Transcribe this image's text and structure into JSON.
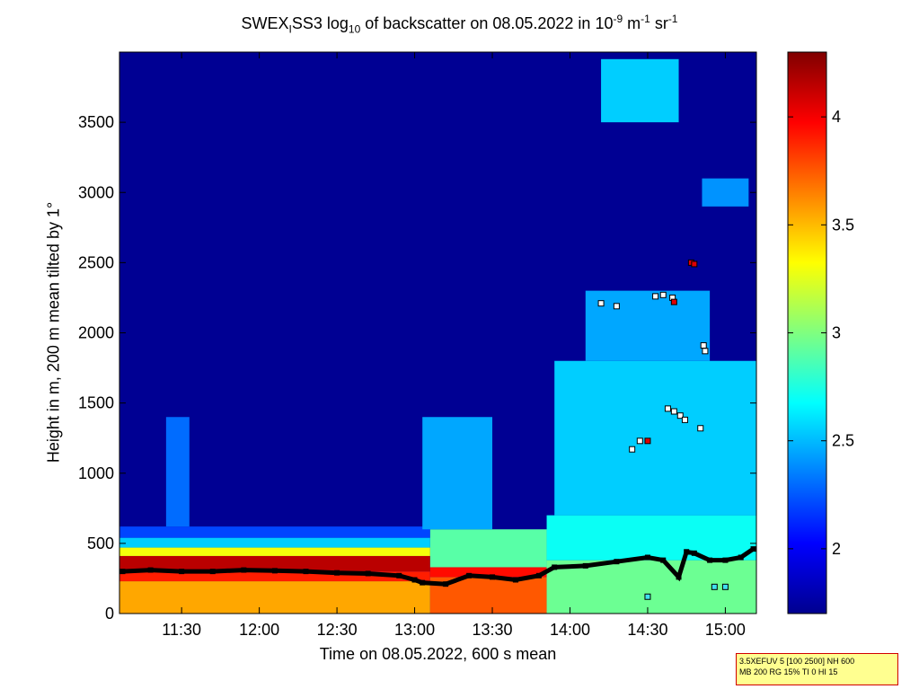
{
  "chart_data": {
    "type": "heatmap",
    "title": {
      "part1": "SWEX",
      "sub1": "I",
      "part2": "SS3 log",
      "sub2": "10",
      "part3": " of backscatter on 08.05.2022 in 10",
      "sup1": "-9",
      "part4": " m",
      "sup2": "-1",
      "part5": " sr",
      "sup3": "-1"
    },
    "xlabel": "Time on 08.05.2022, 600 s mean",
    "ylabel": "Height in m, 200 m mean tilted by 1°",
    "x_range_hours": [
      11.1,
      15.2
    ],
    "x_ticks": [
      {
        "value": 11.5,
        "label": "11:30"
      },
      {
        "value": 12.0,
        "label": "12:00"
      },
      {
        "value": 12.5,
        "label": "12:30"
      },
      {
        "value": 13.0,
        "label": "13:00"
      },
      {
        "value": 13.5,
        "label": "13:30"
      },
      {
        "value": 14.0,
        "label": "14:00"
      },
      {
        "value": 14.5,
        "label": "14:30"
      },
      {
        "value": 15.0,
        "label": "15:00"
      }
    ],
    "y_range": [
      0,
      4000
    ],
    "y_ticks": [
      0,
      500,
      1000,
      1500,
      2000,
      2500,
      3000,
      3500
    ],
    "colorbar": {
      "range": [
        1.7,
        4.3
      ],
      "ticks": [
        2,
        2.5,
        3,
        3.5,
        4
      ],
      "colormap": "jet"
    },
    "colors": {
      "background_min": "#000090",
      "max": "#800000",
      "layer_marker": "#000000",
      "cloud_marker_light": "#ffffff",
      "cloud_marker_cyan": "#40e0f0",
      "cloud_marker_red": "#e00000"
    },
    "features": [
      {
        "t0": 11.1,
        "t1": 13.1,
        "h0": 0,
        "h1": 230,
        "value": 3.55
      },
      {
        "t0": 11.1,
        "t1": 13.1,
        "h0": 230,
        "h1": 300,
        "value": 3.9
      },
      {
        "t0": 11.1,
        "t1": 13.1,
        "h0": 300,
        "h1": 410,
        "value": 4.15
      },
      {
        "t0": 11.1,
        "t1": 13.1,
        "h0": 410,
        "h1": 470,
        "value": 3.3
      },
      {
        "t0": 11.1,
        "t1": 13.1,
        "h0": 470,
        "h1": 540,
        "value": 2.55
      },
      {
        "t0": 11.1,
        "t1": 13.1,
        "h0": 540,
        "h1": 620,
        "value": 2.2
      },
      {
        "t0": 11.4,
        "t1": 11.55,
        "h0": 620,
        "h1": 1400,
        "value": 2.3
      },
      {
        "t0": 13.1,
        "t1": 13.85,
        "h0": 0,
        "h1": 260,
        "value": 3.75
      },
      {
        "t0": 13.1,
        "t1": 13.85,
        "h0": 260,
        "h1": 330,
        "value": 3.95
      },
      {
        "t0": 13.1,
        "t1": 13.85,
        "h0": 330,
        "h1": 600,
        "value": 2.9
      },
      {
        "t0": 13.05,
        "t1": 13.5,
        "h0": 600,
        "h1": 1400,
        "value": 2.45
      },
      {
        "t0": 13.85,
        "t1": 15.2,
        "h0": 0,
        "h1": 380,
        "value": 2.95
      },
      {
        "t0": 13.85,
        "t1": 15.2,
        "h0": 380,
        "h1": 700,
        "value": 2.7
      },
      {
        "t0": 13.9,
        "t1": 15.2,
        "h0": 700,
        "h1": 1800,
        "value": 2.55
      },
      {
        "t0": 14.1,
        "t1": 14.9,
        "h0": 1800,
        "h1": 2300,
        "value": 2.45
      },
      {
        "t0": 14.85,
        "t1": 15.15,
        "h0": 2900,
        "h1": 3100,
        "value": 2.4
      },
      {
        "t0": 14.2,
        "t1": 14.7,
        "h0": 3500,
        "h1": 3950,
        "value": 2.55
      }
    ],
    "layer_height_series": [
      {
        "t": 11.12,
        "h": 300
      },
      {
        "t": 11.3,
        "h": 310
      },
      {
        "t": 11.5,
        "h": 300
      },
      {
        "t": 11.7,
        "h": 300
      },
      {
        "t": 11.9,
        "h": 310
      },
      {
        "t": 12.1,
        "h": 305
      },
      {
        "t": 12.3,
        "h": 300
      },
      {
        "t": 12.5,
        "h": 290
      },
      {
        "t": 12.7,
        "h": 285
      },
      {
        "t": 12.9,
        "h": 270
      },
      {
        "t": 13.0,
        "h": 240
      },
      {
        "t": 13.05,
        "h": 220
      },
      {
        "t": 13.2,
        "h": 210
      },
      {
        "t": 13.35,
        "h": 270
      },
      {
        "t": 13.5,
        "h": 260
      },
      {
        "t": 13.65,
        "h": 240
      },
      {
        "t": 13.8,
        "h": 270
      },
      {
        "t": 13.9,
        "h": 330
      },
      {
        "t": 14.1,
        "h": 340
      },
      {
        "t": 14.3,
        "h": 370
      },
      {
        "t": 14.5,
        "h": 400
      },
      {
        "t": 14.6,
        "h": 380
      },
      {
        "t": 14.7,
        "h": 260
      },
      {
        "t": 14.75,
        "h": 440
      },
      {
        "t": 14.8,
        "h": 430
      },
      {
        "t": 14.9,
        "h": 380
      },
      {
        "t": 15.0,
        "h": 380
      },
      {
        "t": 15.1,
        "h": 400
      },
      {
        "t": 15.18,
        "h": 460
      }
    ],
    "cloud_base_points": [
      {
        "t": 14.2,
        "h": 2210,
        "kind": "light"
      },
      {
        "t": 14.3,
        "h": 2190,
        "kind": "light"
      },
      {
        "t": 14.55,
        "h": 2260,
        "kind": "light"
      },
      {
        "t": 14.6,
        "h": 2270,
        "kind": "light"
      },
      {
        "t": 14.66,
        "h": 2250,
        "kind": "light"
      },
      {
        "t": 14.67,
        "h": 2220,
        "kind": "red"
      },
      {
        "t": 14.78,
        "h": 2500,
        "kind": "red"
      },
      {
        "t": 14.8,
        "h": 2490,
        "kind": "red"
      },
      {
        "t": 14.86,
        "h": 1910,
        "kind": "light"
      },
      {
        "t": 14.87,
        "h": 1870,
        "kind": "light"
      },
      {
        "t": 14.4,
        "h": 1170,
        "kind": "light"
      },
      {
        "t": 14.45,
        "h": 1230,
        "kind": "light"
      },
      {
        "t": 14.5,
        "h": 1230,
        "kind": "red"
      },
      {
        "t": 14.63,
        "h": 1460,
        "kind": "light"
      },
      {
        "t": 14.67,
        "h": 1440,
        "kind": "light"
      },
      {
        "t": 14.71,
        "h": 1410,
        "kind": "light"
      },
      {
        "t": 14.74,
        "h": 1380,
        "kind": "light"
      },
      {
        "t": 14.84,
        "h": 1320,
        "kind": "light"
      },
      {
        "t": 14.5,
        "h": 120,
        "kind": "cyan"
      },
      {
        "t": 14.93,
        "h": 190,
        "kind": "cyan"
      },
      {
        "t": 15.0,
        "h": 190,
        "kind": "cyan"
      }
    ]
  },
  "info_box": {
    "line1": "3.5XEFUV 5 [100 2500] NH 600",
    "line2": "MB 200 RG 15% TI 0 HI 15"
  }
}
